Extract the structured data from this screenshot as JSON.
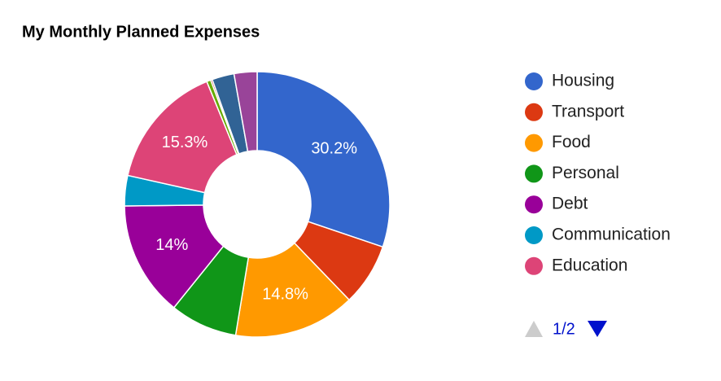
{
  "chart_data": {
    "type": "pie",
    "title": "My Monthly Planned Expenses",
    "categories": [
      "Housing",
      "Transport",
      "Food",
      "Personal",
      "Debt",
      "Communication",
      "Education",
      null,
      null,
      null,
      null
    ],
    "values": [
      30.2,
      7.6,
      14.8,
      8.2,
      14,
      3.7,
      15.3,
      0.5,
      0.2,
      2.7,
      2.8
    ],
    "value_labels": [
      "30.2%",
      null,
      "14.8%",
      null,
      "14%",
      null,
      "15.3%",
      null,
      null,
      null,
      null
    ],
    "colors": [
      "#3366cc",
      "#dc3912",
      "#ff9900",
      "#109618",
      "#990099",
      "#0099c6",
      "#dd4477",
      "#66aa00",
      "#b82e2e",
      "#316395",
      "#994499"
    ],
    "donut": true,
    "legend": "right",
    "legend_page": "1/2"
  }
}
